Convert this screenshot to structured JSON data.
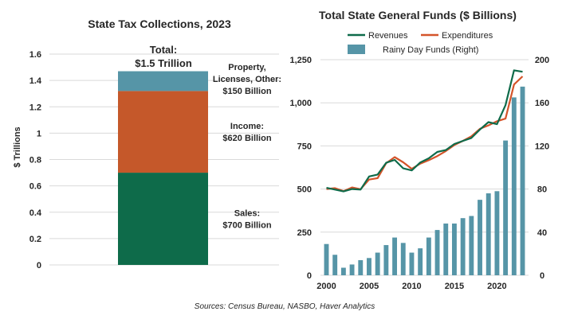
{
  "colors": {
    "sales": "#0E6B4A",
    "income": "#C5582A",
    "property": "#5695A7",
    "revenues_line": "#0E6B4A",
    "expenditures_line": "#D4542A",
    "rainy_bars": "#5695A7",
    "grid": "#D9D9D9"
  },
  "source": "Sources: Census Bureau, NASBO, Haver Analytics",
  "chart_data": [
    {
      "type": "bar",
      "stacked": true,
      "title": "State Tax Collections, 2023",
      "ylabel": "$ Trillions",
      "ylim": [
        0,
        1.6
      ],
      "yticks": [
        "0",
        "0.2",
        "0.4",
        "0.6",
        "0.8",
        "1",
        "1.2",
        "1.4",
        "1.6"
      ],
      "total_label_line1": "Total:",
      "total_label_line2": "$1.5 Trillion",
      "segments": [
        {
          "name": "Sales",
          "value": 0.7,
          "label_lines": [
            "Sales:",
            "$700 Billion"
          ]
        },
        {
          "name": "Income",
          "value": 0.62,
          "label_lines": [
            "Income:",
            "$620 Billion"
          ]
        },
        {
          "name": "Property, Licenses, Other",
          "value": 0.15,
          "label_lines": [
            "Property,",
            "Licenses, Other:",
            "$150 Billion"
          ]
        }
      ]
    },
    {
      "type": "line",
      "title": "Total State General Funds ($ Billions)",
      "x": [
        2000,
        2001,
        2002,
        2003,
        2004,
        2005,
        2006,
        2007,
        2008,
        2009,
        2010,
        2011,
        2012,
        2013,
        2014,
        2015,
        2016,
        2017,
        2018,
        2019,
        2020,
        2021,
        2022,
        2023
      ],
      "xticks": [
        "2000",
        "2005",
        "2010",
        "2015",
        "2020"
      ],
      "xlim": [
        1999.3,
        2023.7
      ],
      "ylim_left": [
        0,
        1250
      ],
      "yticks_left": [
        "0",
        "250",
        "500",
        "750",
        "1,000",
        "1,250"
      ],
      "ylim_right": [
        0,
        200
      ],
      "yticks_right": [
        "0",
        "40",
        "80",
        "120",
        "160",
        "200"
      ],
      "legend": [
        "Revenues",
        "Expenditures",
        "Rainy Day Funds (Right)"
      ],
      "series": [
        {
          "name": "Revenues",
          "axis": "left",
          "type": "line",
          "values": [
            507,
            497,
            486,
            500,
            497,
            573,
            584,
            652,
            669,
            620,
            608,
            654,
            678,
            715,
            726,
            761,
            779,
            796,
            845,
            888,
            876,
            986,
            1188,
            1180
          ]
        },
        {
          "name": "Expenditures",
          "axis": "left",
          "type": "line",
          "values": [
            500,
            505,
            488,
            509,
            499,
            555,
            563,
            650,
            685,
            655,
            617,
            647,
            667,
            691,
            720,
            755,
            779,
            806,
            849,
            869,
            893,
            908,
            1106,
            1153
          ]
        },
        {
          "name": "Rainy Day Funds (Right)",
          "axis": "right",
          "type": "bar",
          "values": [
            29,
            19,
            7,
            10,
            14,
            16,
            21,
            28,
            35,
            30,
            21,
            25,
            35,
            42,
            48,
            48,
            53,
            55,
            70,
            76,
            78,
            125,
            165,
            175
          ]
        }
      ]
    }
  ]
}
